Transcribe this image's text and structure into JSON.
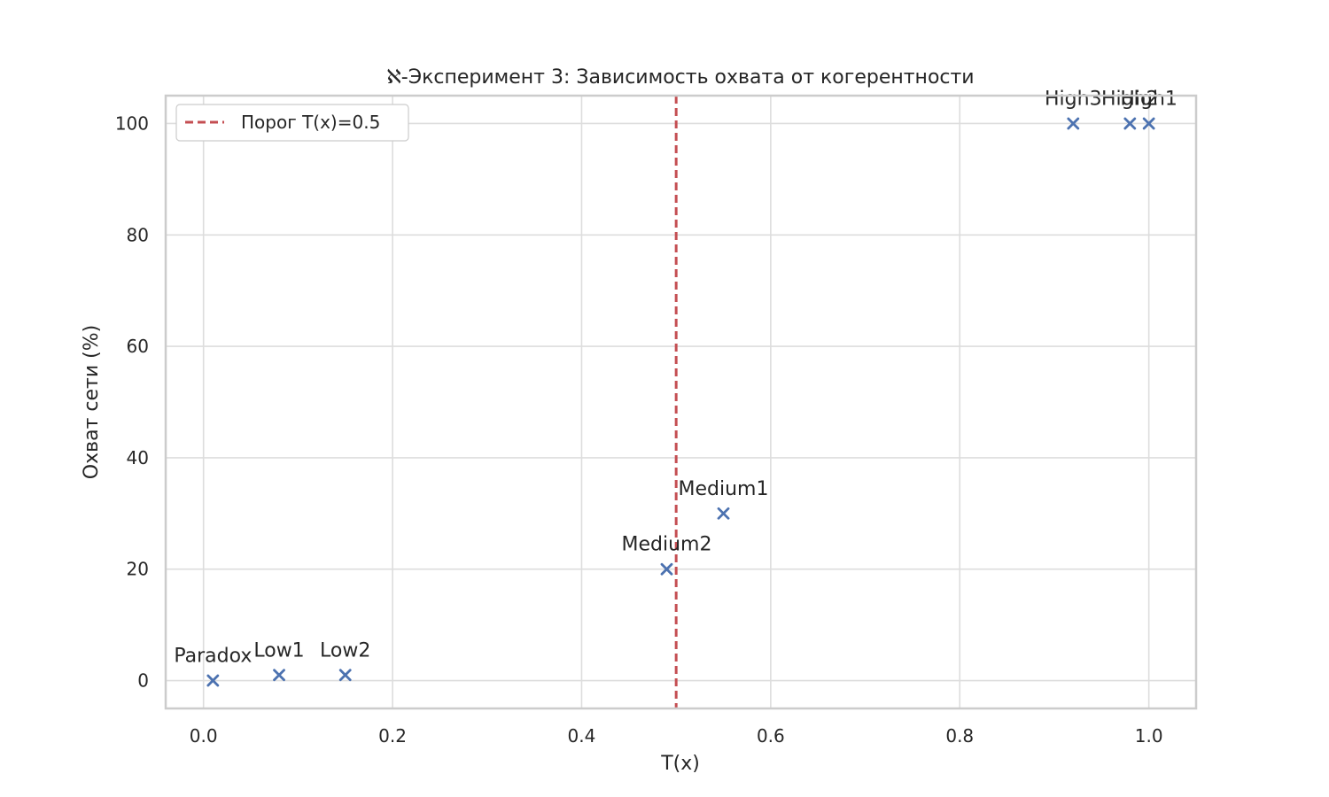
{
  "chart_data": {
    "type": "scatter",
    "title": "ℵ-Эксперимент 3: Зависимость охвата от когерентности",
    "xlabel": "T(x)",
    "ylabel": "Охват сети (%)",
    "xlim": [
      -0.04,
      1.05
    ],
    "ylim": [
      -5,
      105
    ],
    "xticks": [
      0.0,
      0.2,
      0.4,
      0.6,
      0.8,
      1.0
    ],
    "xtick_labels": [
      "0.0",
      "0.2",
      "0.4",
      "0.6",
      "0.8",
      "1.0"
    ],
    "yticks": [
      0,
      20,
      40,
      60,
      80,
      100
    ],
    "ytick_labels": [
      "0",
      "20",
      "40",
      "60",
      "80",
      "100"
    ],
    "grid": true,
    "legend_position": "top-left",
    "threshold": {
      "x": 0.5,
      "label": "Порог T(x)=0.5",
      "color": "#c44e52"
    },
    "marker_color": "#4c72b0",
    "points": [
      {
        "label": "Paradox",
        "x": 0.01,
        "y": 0
      },
      {
        "label": "Low1",
        "x": 0.08,
        "y": 1
      },
      {
        "label": "Low2",
        "x": 0.15,
        "y": 1
      },
      {
        "label": "Medium2",
        "x": 0.49,
        "y": 20
      },
      {
        "label": "Medium1",
        "x": 0.55,
        "y": 30
      },
      {
        "label": "High3",
        "x": 0.92,
        "y": 100
      },
      {
        "label": "High2",
        "x": 0.98,
        "y": 100
      },
      {
        "label": "High1",
        "x": 1.0,
        "y": 100
      }
    ]
  }
}
